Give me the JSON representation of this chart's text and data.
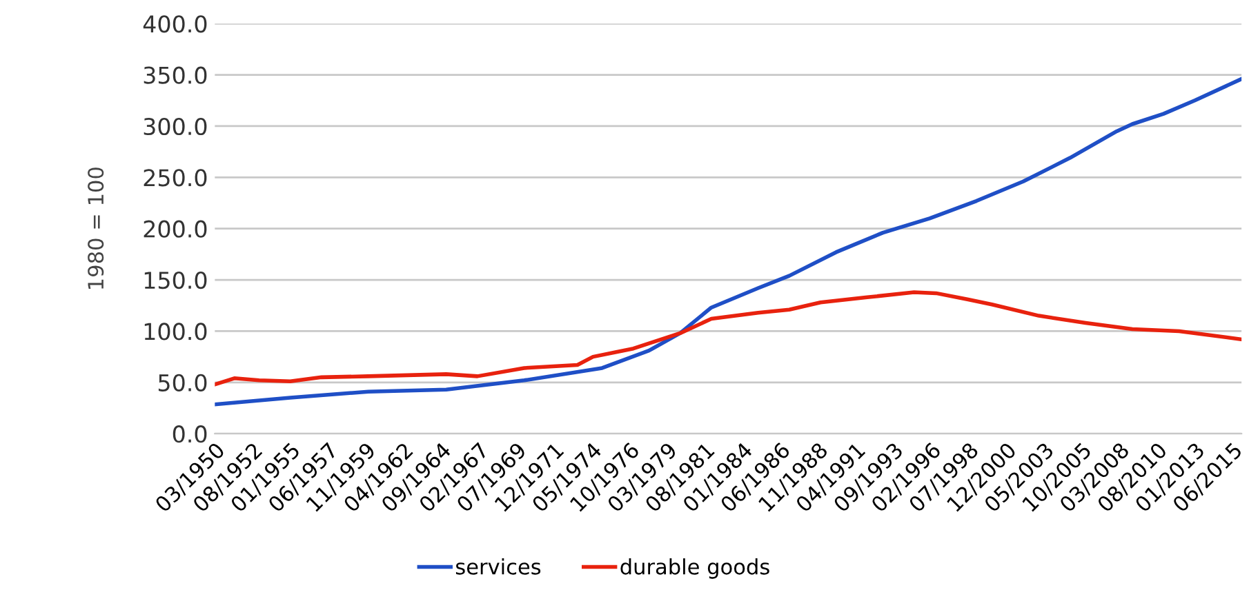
{
  "chart_data": {
    "type": "line",
    "ylabel": "1980 = 100",
    "x": [
      "1950-03",
      "1955-01",
      "1960-01",
      "1965-01",
      "1970-01",
      "1975-01",
      "1978-01",
      "1980-01",
      "1982-01",
      "1985-01",
      "1987-01",
      "1990-01",
      "1993-01",
      "1996-01",
      "1999-01",
      "2002-01",
      "2005-01",
      "2008-01",
      "2009-01",
      "2011-01",
      "2013-01",
      "2016-01"
    ],
    "series": [
      {
        "name": "services",
        "color": "#1f4fc6",
        "values": [
          28.5,
          35,
          41,
          43,
          52,
          64,
          81,
          98,
          123,
          142,
          154,
          177,
          196,
          210,
          227,
          246,
          269,
          295,
          302,
          312,
          325,
          346
        ]
      },
      {
        "name": "durable goods",
        "x": [
          "1950-03",
          "1951-06",
          "1953-01",
          "1955-01",
          "1957-01",
          "1960-01",
          "1965-01",
          "1967-01",
          "1970-01",
          "1973-06",
          "1974-06",
          "1977-01",
          "1980-01",
          "1982-01",
          "1985-01",
          "1987-01",
          "1989-01",
          "1992-01",
          "1995-01",
          "1996-06",
          "1998-06",
          "2000-01",
          "2003-01",
          "2006-01",
          "2009-01",
          "2012-01",
          "2016-01"
        ],
        "color": "#e8220e",
        "values": [
          48,
          54,
          52,
          51,
          55,
          56,
          58,
          56,
          64,
          67,
          75,
          83,
          98,
          112,
          118,
          121,
          128,
          133,
          138,
          137,
          131,
          126,
          115,
          108,
          102,
          100,
          92
        ]
      }
    ],
    "xlim": [
      "1950-03",
      "2016-01"
    ],
    "xticks": [
      {
        "value": "1950-03",
        "label": "03/1950"
      },
      {
        "value": "1952-08",
        "label": "08/1952"
      },
      {
        "value": "1955-01",
        "label": "01/1955"
      },
      {
        "value": "1957-06",
        "label": "06/1957"
      },
      {
        "value": "1959-11",
        "label": "11/1959"
      },
      {
        "value": "1962-04",
        "label": "04/1962"
      },
      {
        "value": "1964-09",
        "label": "09/1964"
      },
      {
        "value": "1967-02",
        "label": "02/1967"
      },
      {
        "value": "1969-07",
        "label": "07/1969"
      },
      {
        "value": "1971-12",
        "label": "12/1971"
      },
      {
        "value": "1974-05",
        "label": "05/1974"
      },
      {
        "value": "1976-10",
        "label": "10/1976"
      },
      {
        "value": "1979-03",
        "label": "03/1979"
      },
      {
        "value": "1981-08",
        "label": "08/1981"
      },
      {
        "value": "1984-01",
        "label": "01/1984"
      },
      {
        "value": "1986-06",
        "label": "06/1986"
      },
      {
        "value": "1988-11",
        "label": "11/1988"
      },
      {
        "value": "1991-04",
        "label": "04/1991"
      },
      {
        "value": "1993-09",
        "label": "09/1993"
      },
      {
        "value": "1996-02",
        "label": "02/1996"
      },
      {
        "value": "1998-07",
        "label": "07/1998"
      },
      {
        "value": "2000-12",
        "label": "12/2000"
      },
      {
        "value": "2003-05",
        "label": "05/2003"
      },
      {
        "value": "2005-10",
        "label": "10/2005"
      },
      {
        "value": "2008-03",
        "label": "03/2008"
      },
      {
        "value": "2010-08",
        "label": "08/2010"
      },
      {
        "value": "2013-01",
        "label": "01/2013"
      },
      {
        "value": "2015-06",
        "label": "06/2015"
      }
    ],
    "ylim": [
      0,
      400
    ],
    "yticks": [
      {
        "value": 0,
        "label": "0.0"
      },
      {
        "value": 50,
        "label": "50.0"
      },
      {
        "value": 100,
        "label": "100.0"
      },
      {
        "value": 150,
        "label": "150.0"
      },
      {
        "value": 200,
        "label": "200.0"
      },
      {
        "value": 250,
        "label": "250.0"
      },
      {
        "value": 300,
        "label": "300.0"
      },
      {
        "value": 350,
        "label": "350.0"
      },
      {
        "value": 400,
        "label": "400.0"
      }
    ],
    "grid": "y",
    "legend": "bottom",
    "marker": "none",
    "line_style": "solid"
  }
}
